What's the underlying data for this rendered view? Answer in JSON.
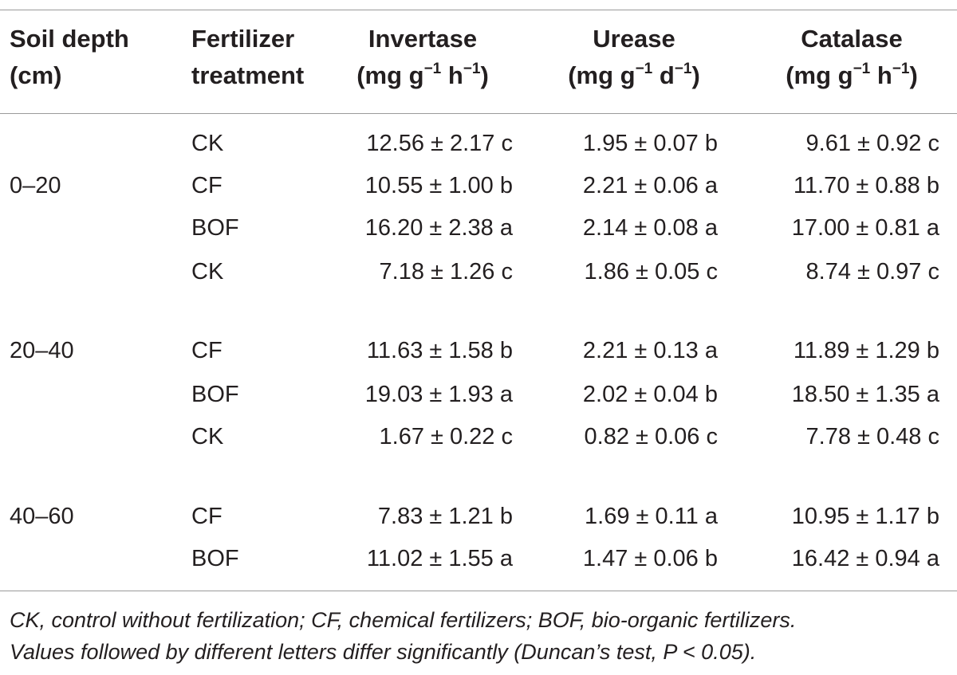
{
  "headers": {
    "depth": [
      "Soil depth",
      "(cm)"
    ],
    "treatment": [
      "Fertilizer",
      "treatment"
    ],
    "invertase": {
      "name": "Invertase",
      "unit_pre": "(mg g",
      "unit_sup1": "−1",
      "unit_mid": " h",
      "unit_sup2": "−1",
      "unit_post": ")"
    },
    "urease": {
      "name": "Urease",
      "unit_pre": "(mg g",
      "unit_sup1": "−1",
      "unit_mid": " d",
      "unit_sup2": "−1",
      "unit_post": ")"
    },
    "catalase": {
      "name": "Catalase",
      "unit_pre": "(mg g",
      "unit_sup1": "−1",
      "unit_mid": " h",
      "unit_sup2": "−1",
      "unit_post": ")"
    }
  },
  "depth_labels": [
    "0–20",
    "20–40",
    "40–60"
  ],
  "rows": [
    {
      "treatment": "CK",
      "invertase": "12.56 ± 2.17 c",
      "urease": "1.95 ± 0.07 b",
      "catalase": "9.61 ± 0.92 c"
    },
    {
      "treatment": "CF",
      "invertase": "10.55 ± 1.00 b",
      "urease": "2.21 ± 0.06 a",
      "catalase": "11.70 ± 0.88 b"
    },
    {
      "treatment": "BOF",
      "invertase": "16.20 ± 2.38 a",
      "urease": "2.14 ± 0.08 a",
      "catalase": "17.00 ± 0.81 a"
    },
    {
      "treatment": "CK",
      "invertase": "7.18 ± 1.26 c",
      "urease": "1.86 ± 0.05 c",
      "catalase": "8.74 ± 0.97 c"
    },
    {
      "treatment": "CF",
      "invertase": "11.63 ± 1.58 b",
      "urease": "2.21 ± 0.13 a",
      "catalase": "11.89 ± 1.29 b"
    },
    {
      "treatment": "BOF",
      "invertase": "19.03 ± 1.93 a",
      "urease": "2.02 ± 0.04 b",
      "catalase": "18.50 ± 1.35 a"
    },
    {
      "treatment": "CK",
      "invertase": "1.67 ± 0.22 c",
      "urease": "0.82 ± 0.06 c",
      "catalase": "7.78 ± 0.48 c"
    },
    {
      "treatment": "CF",
      "invertase": "7.83 ± 1.21 b",
      "urease": "1.69 ± 0.11 a",
      "catalase": "10.95 ± 1.17 b"
    },
    {
      "treatment": "BOF",
      "invertase": "11.02 ± 1.55 a",
      "urease": "1.47 ± 0.06 b",
      "catalase": "16.42 ± 0.94 a"
    }
  ],
  "footnote": [
    "CK, control without fertilization; CF, chemical fertilizers; BOF, bio-organic fertilizers.",
    "Values followed by different letters differ significantly (Duncan’s test, P < 0.05)."
  ]
}
